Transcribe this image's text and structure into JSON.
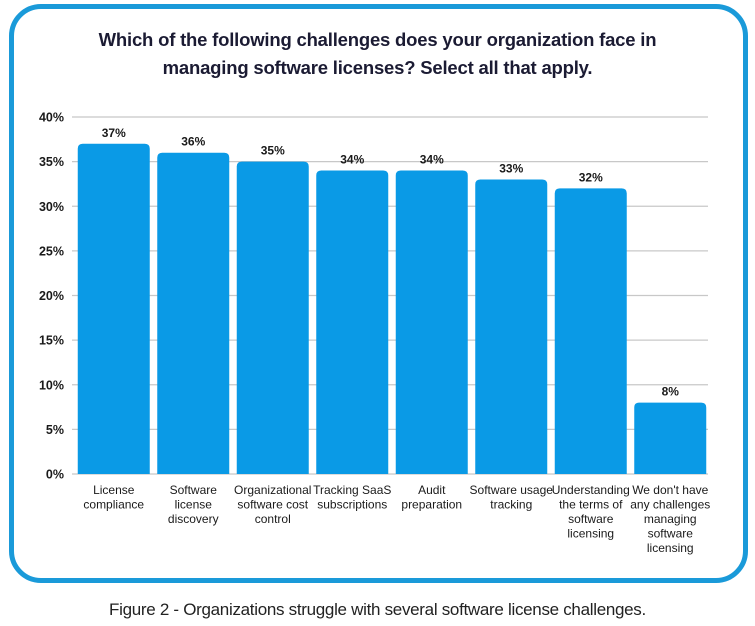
{
  "chart_data": {
    "type": "bar",
    "title": "Which of the following challenges does your organization face in managing software licenses? Select all that apply.",
    "title_lines": [
      "Which of the following challenges does your organization face in",
      "managing software licenses? Select all that apply."
    ],
    "xlabel": "",
    "ylabel": "",
    "ylim": [
      0,
      40
    ],
    "yticks": [
      0,
      5,
      10,
      15,
      20,
      25,
      30,
      35,
      40
    ],
    "ytick_labels": [
      "0%",
      "5%",
      "10%",
      "15%",
      "20%",
      "25%",
      "30%",
      "35%",
      "40%"
    ],
    "grid": true,
    "legend": "none",
    "bar_color": "#0a9ae6",
    "categories": [
      "License compliance",
      "Software license discovery",
      "Organizational software cost control",
      "Tracking SaaS subscriptions",
      "Audit preparation",
      "Software usage tracking",
      "Understanding the terms of software licensing",
      "We don't have any challenges managing software licensing"
    ],
    "category_lines": [
      [
        "License",
        "compliance"
      ],
      [
        "Software",
        "license",
        "discovery"
      ],
      [
        "Organizational",
        "software cost",
        "control"
      ],
      [
        "Tracking SaaS",
        "subscriptions"
      ],
      [
        "Audit",
        "preparation"
      ],
      [
        "Software usage",
        "tracking"
      ],
      [
        "Understanding",
        "the terms of",
        "software",
        "licensing"
      ],
      [
        "We don't have",
        "any challenges",
        "managing",
        "software",
        "licensing"
      ]
    ],
    "values": [
      37,
      36,
      35,
      34,
      34,
      33,
      32,
      8
    ],
    "data_labels": [
      "37%",
      "36%",
      "35%",
      "34%",
      "34%",
      "33%",
      "32%",
      "8%"
    ]
  },
  "figure": {
    "caption": "Figure 2 - Organizations struggle with several software license challenges.",
    "border_color": "#1a9ad9"
  }
}
